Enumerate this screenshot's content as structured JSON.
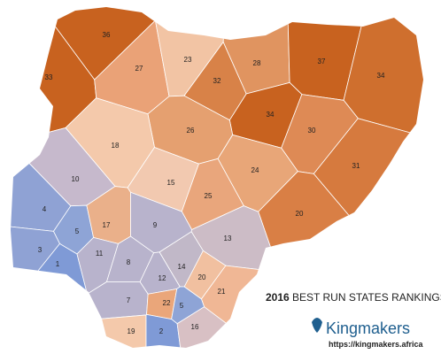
{
  "title_year": "2016",
  "title": "BEST RUN STATES RANKINGS",
  "brand": "Kingmakers",
  "url": "https://kingmakers.africa",
  "regions": [
    {
      "rank": 36,
      "color": "#c8621f"
    },
    {
      "rank": 33,
      "color": "#c8621f"
    },
    {
      "rank": 27,
      "color": "#eaa277"
    },
    {
      "rank": 23,
      "color": "#f2c4a4"
    },
    {
      "rank": 32,
      "color": "#d88248"
    },
    {
      "rank": 28,
      "color": "#e09460"
    },
    {
      "rank": 37,
      "color": "#c8621f"
    },
    {
      "rank": 34,
      "color": "#cf6f2e"
    },
    {
      "rank": 34,
      "color": "#c8621f"
    },
    {
      "rank": 26,
      "color": "#e5a070"
    },
    {
      "rank": 30,
      "color": "#de8a55"
    },
    {
      "rank": 18,
      "color": "#f4c9ab"
    },
    {
      "rank": 24,
      "color": "#e8a678"
    },
    {
      "rank": 31,
      "color": "#d67a3e"
    },
    {
      "rank": 15,
      "color": "#f2c9b0"
    },
    {
      "rank": 25,
      "color": "#e9a67c"
    },
    {
      "rank": 20,
      "color": "#d97f45"
    },
    {
      "rank": 10,
      "color": "#c6b9cc"
    },
    {
      "rank": 4,
      "color": "#8fa2d4"
    },
    {
      "rank": 5,
      "color": "#8ea4d6"
    },
    {
      "rank": 17,
      "color": "#eab08a"
    },
    {
      "rank": 9,
      "color": "#b8b3cc"
    },
    {
      "rank": 3,
      "color": "#8fa2d4"
    },
    {
      "rank": 13,
      "color": "#ccbcc6"
    },
    {
      "rank": 1,
      "color": "#7f9ad6"
    },
    {
      "rank": 11,
      "color": "#b8b3cc"
    },
    {
      "rank": 8,
      "color": "#b8b3cc"
    },
    {
      "rank": 14,
      "color": "#c1b8c8"
    },
    {
      "rank": 12,
      "color": "#b8b3cc"
    },
    {
      "rank": 20,
      "color": "#f1c0a0"
    },
    {
      "rank": 21,
      "color": "#f0b795"
    },
    {
      "rank": 7,
      "color": "#b8b3cc"
    },
    {
      "rank": 22,
      "color": "#eaa67a"
    },
    {
      "rank": 5,
      "color": "#8ea4d6"
    },
    {
      "rank": 19,
      "color": "#f4c9ab"
    },
    {
      "rank": 2,
      "color": "#7f9ad6"
    },
    {
      "rank": 16,
      "color": "#d8c0c4"
    }
  ]
}
